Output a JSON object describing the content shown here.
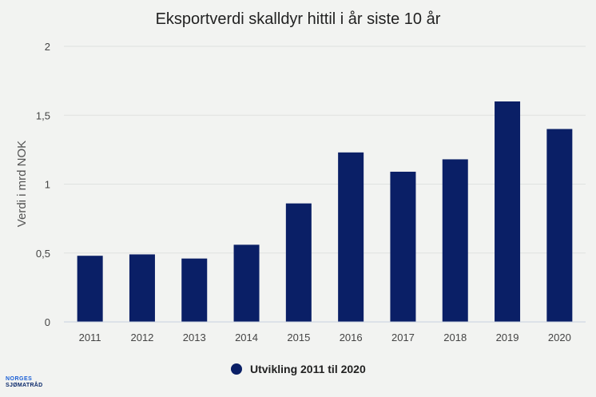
{
  "chart_data": {
    "type": "bar",
    "title": "Eksportverdi skalldyr hittil i år siste 10 år",
    "xlabel": "",
    "ylabel": "Verdi i mrd NOK",
    "categories": [
      "2011",
      "2012",
      "2013",
      "2014",
      "2015",
      "2016",
      "2017",
      "2018",
      "2019",
      "2020"
    ],
    "series": [
      {
        "name": "Utvikling 2011 til 2020",
        "values": [
          0.48,
          0.49,
          0.46,
          0.56,
          0.86,
          1.23,
          1.09,
          1.18,
          1.6,
          1.4
        ],
        "color": "#0a1f66"
      }
    ],
    "ylim": [
      0,
      2
    ],
    "yticks": [
      {
        "value": 0,
        "label": "0"
      },
      {
        "value": 0.5,
        "label": "0,5"
      },
      {
        "value": 1,
        "label": "1"
      },
      {
        "value": 1.5,
        "label": "1,5"
      },
      {
        "value": 2,
        "label": "2"
      }
    ],
    "grid": true,
    "legend": "bottom-center"
  },
  "logo": {
    "line1": "NORGES",
    "line2": "SJØMATRÅD"
  }
}
